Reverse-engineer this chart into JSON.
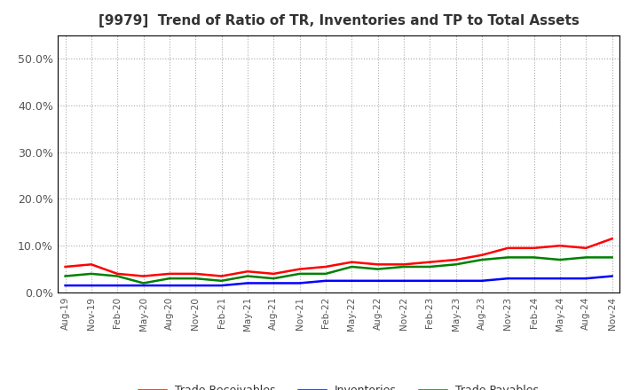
{
  "title": "[9979]  Trend of Ratio of TR, Inventories and TP to Total Assets",
  "x_labels": [
    "Aug-19",
    "Nov-19",
    "Feb-20",
    "May-20",
    "Aug-20",
    "Nov-20",
    "Feb-21",
    "May-21",
    "Aug-21",
    "Nov-21",
    "Feb-22",
    "May-22",
    "Aug-22",
    "Nov-22",
    "Feb-23",
    "May-23",
    "Aug-23",
    "Nov-23",
    "Feb-24",
    "May-24",
    "Aug-24",
    "Nov-24"
  ],
  "trade_receivables": [
    5.5,
    6.0,
    4.0,
    3.5,
    4.0,
    4.0,
    3.5,
    4.5,
    4.0,
    5.0,
    5.5,
    6.5,
    6.0,
    6.0,
    6.5,
    7.0,
    8.0,
    9.5,
    9.5,
    10.0,
    9.5,
    11.5
  ],
  "inventories": [
    1.5,
    1.5,
    1.5,
    1.5,
    1.5,
    1.5,
    1.5,
    2.0,
    2.0,
    2.0,
    2.5,
    2.5,
    2.5,
    2.5,
    2.5,
    2.5,
    2.5,
    3.0,
    3.0,
    3.0,
    3.0,
    3.5
  ],
  "trade_payables": [
    3.5,
    4.0,
    3.5,
    2.0,
    3.0,
    3.0,
    2.5,
    3.5,
    3.0,
    4.0,
    4.0,
    5.5,
    5.0,
    5.5,
    5.5,
    6.0,
    7.0,
    7.5,
    7.5,
    7.0,
    7.5,
    7.5
  ],
  "ylim": [
    0,
    55
  ],
  "yticks": [
    0,
    10,
    20,
    30,
    40,
    50
  ],
  "color_tr": "#ff0000",
  "color_inv": "#0000ff",
  "color_tp": "#008000",
  "legend_labels": [
    "Trade Receivables",
    "Inventories",
    "Trade Payables"
  ],
  "background_color": "#ffffff",
  "grid_color": "#aaaaaa"
}
